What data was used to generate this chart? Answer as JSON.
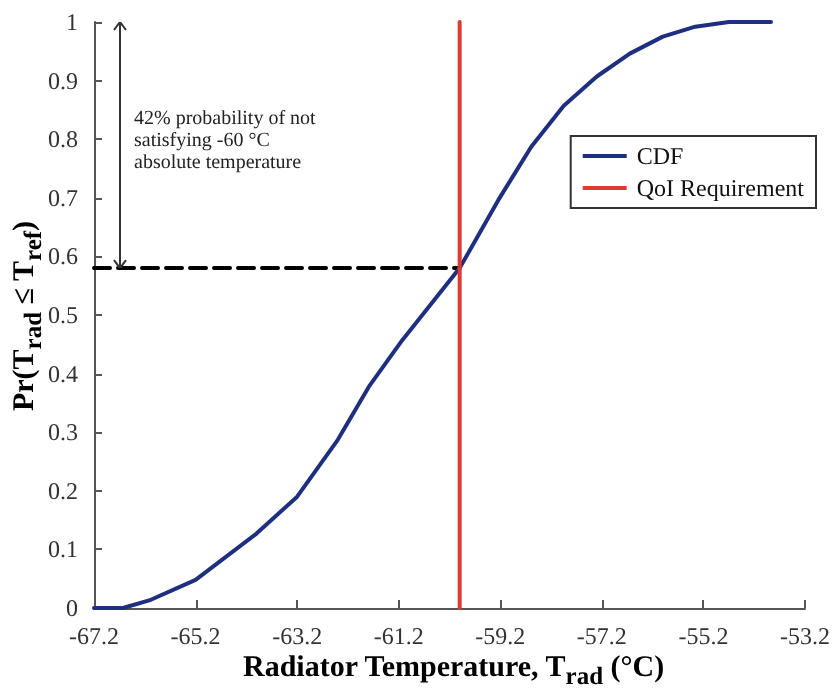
{
  "chart_data": {
    "type": "line",
    "xlabel": "Radiator Temperature, T$_{rad}$ (°C)",
    "ylabel": "Pr(T$_{rad}$ ≤ T$_{ref}$)",
    "xlim": [
      -67.2,
      -53.2
    ],
    "xticks": [
      -67.2,
      -65.2,
      -63.2,
      -61.2,
      -59.2,
      -57.2,
      -55.2,
      -53.2
    ],
    "ylim": [
      0,
      1
    ],
    "yticks": [
      0,
      0.1,
      0.2,
      0.3,
      0.4,
      0.5,
      0.6,
      0.7,
      0.8,
      0.9,
      1
    ],
    "grid": false,
    "legend": "top right",
    "marker": "none",
    "series": [
      {
        "name": "CDF",
        "color": "#1f2f80",
        "x": [
          -67.2,
          -66.63,
          -66.08,
          -65.2,
          -64.0,
          -63.2,
          -62.4,
          -61.77,
          -61.13,
          -60.0,
          -59.24,
          -58.59,
          -57.95,
          -57.3,
          -56.65,
          -56.0,
          -55.36,
          -54.7,
          -53.87
        ],
        "values": [
          0,
          0,
          0.014,
          0.048,
          0.127,
          0.19,
          0.287,
          0.38,
          0.457,
          0.58,
          0.696,
          0.787,
          0.857,
          0.907,
          0.946,
          0.975,
          0.992,
          1.0,
          1.0
        ]
      },
      {
        "name": "QoI Requirement",
        "color": "#e03a2e",
        "x": [
          -60,
          -60
        ],
        "values": [
          0,
          1
        ]
      },
      {
        "color": "#000000",
        "line_style": "dashed",
        "x": [
          -67.2,
          -60
        ],
        "values": [
          0.58,
          0.58
        ]
      }
    ],
    "annotations": [
      "42% probability of not\nsatisfying -60 °C\nabsolute temperature"
    ]
  }
}
